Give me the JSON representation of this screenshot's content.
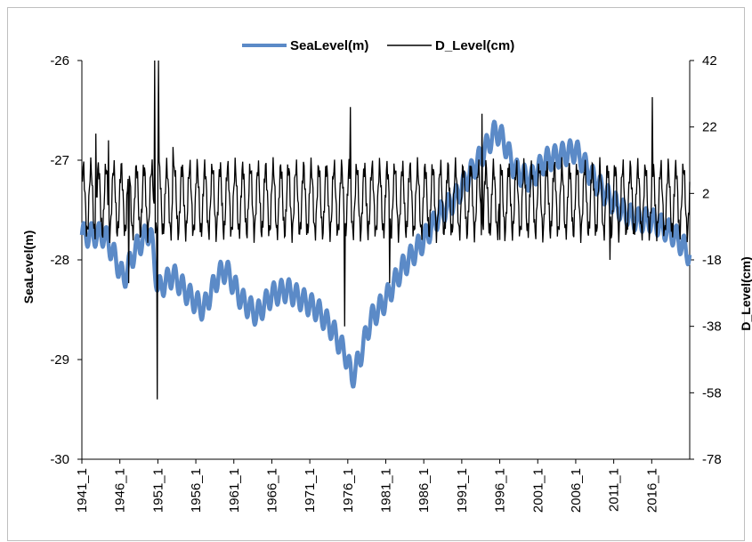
{
  "chart_data": {
    "type": "line",
    "title": "",
    "left_axis": {
      "label": "SeaLevel(m)",
      "min": -30,
      "max": -26,
      "ticks": [
        -26,
        -27,
        -28,
        -29,
        -30
      ]
    },
    "right_axis": {
      "label": "D_Level(cm)",
      "min": -78,
      "max": 42,
      "ticks": [
        42,
        22,
        2,
        -18,
        -38,
        -58,
        -78
      ]
    },
    "x_tick_labels": [
      "1941_1",
      "1946_1",
      "1951_1",
      "1956_1",
      "1961_1",
      "1966_1",
      "1971_1",
      "1976_1",
      "1981_1",
      "1986_1",
      "1991_1",
      "1996_1",
      "2001_1",
      "2006_1",
      "2011_1",
      "2016_1"
    ],
    "x_range": [
      1941,
      2021
    ],
    "legend": {
      "placement": "top-center"
    },
    "series": [
      {
        "name": "SeaLevel(m)",
        "axis": "left",
        "color": "#5b8ac7",
        "seasonal_amplitude": 0.12,
        "trend": [
          [
            1941.0,
            -27.75
          ],
          [
            1944.0,
            -27.75
          ],
          [
            1945.5,
            -28.0
          ],
          [
            1946.5,
            -28.2
          ],
          [
            1948.0,
            -27.9
          ],
          [
            1950.0,
            -27.7
          ],
          [
            1951.0,
            -28.3
          ],
          [
            1953.0,
            -28.15
          ],
          [
            1955.0,
            -28.35
          ],
          [
            1957.0,
            -28.5
          ],
          [
            1959.0,
            -28.15
          ],
          [
            1960.0,
            -28.1
          ],
          [
            1962.0,
            -28.4
          ],
          [
            1964.0,
            -28.55
          ],
          [
            1966.0,
            -28.35
          ],
          [
            1968.0,
            -28.3
          ],
          [
            1970.0,
            -28.4
          ],
          [
            1972.0,
            -28.5
          ],
          [
            1974.0,
            -28.7
          ],
          [
            1975.0,
            -28.85
          ],
          [
            1976.0,
            -29.0
          ],
          [
            1976.5,
            -29.2
          ],
          [
            1977.5,
            -29.0
          ],
          [
            1979.0,
            -28.6
          ],
          [
            1981.0,
            -28.4
          ],
          [
            1983.0,
            -28.1
          ],
          [
            1986.0,
            -27.8
          ],
          [
            1988.0,
            -27.55
          ],
          [
            1990.0,
            -27.4
          ],
          [
            1992.0,
            -27.15
          ],
          [
            1994.0,
            -26.9
          ],
          [
            1995.5,
            -26.7
          ],
          [
            1996.5,
            -26.8
          ],
          [
            1998.0,
            -27.1
          ],
          [
            2000.0,
            -27.2
          ],
          [
            2002.0,
            -27.0
          ],
          [
            2004.0,
            -26.95
          ],
          [
            2006.0,
            -26.9
          ],
          [
            2008.0,
            -27.15
          ],
          [
            2010.0,
            -27.35
          ],
          [
            2012.0,
            -27.5
          ],
          [
            2014.0,
            -27.6
          ],
          [
            2016.0,
            -27.6
          ],
          [
            2019.0,
            -27.75
          ],
          [
            2021.0,
            -27.95
          ]
        ]
      },
      {
        "name": "D_Level(cm)",
        "axis": "right",
        "color": "#000000",
        "baseline": 0,
        "seasonal_amplitude": 10,
        "spikes": [
          [
            1950.6,
            42
          ],
          [
            1950.9,
            -60
          ],
          [
            1951.1,
            42
          ],
          [
            1947.2,
            -25
          ],
          [
            1976.3,
            28
          ],
          [
            1975.6,
            -38
          ],
          [
            1981.5,
            -25
          ],
          [
            1993.7,
            26
          ],
          [
            2016.1,
            31
          ],
          [
            2010.5,
            -18
          ],
          [
            1942.8,
            20
          ],
          [
            1944.5,
            18
          ],
          [
            1953.0,
            16
          ],
          [
            1996.0,
            -12
          ]
        ]
      }
    ]
  }
}
